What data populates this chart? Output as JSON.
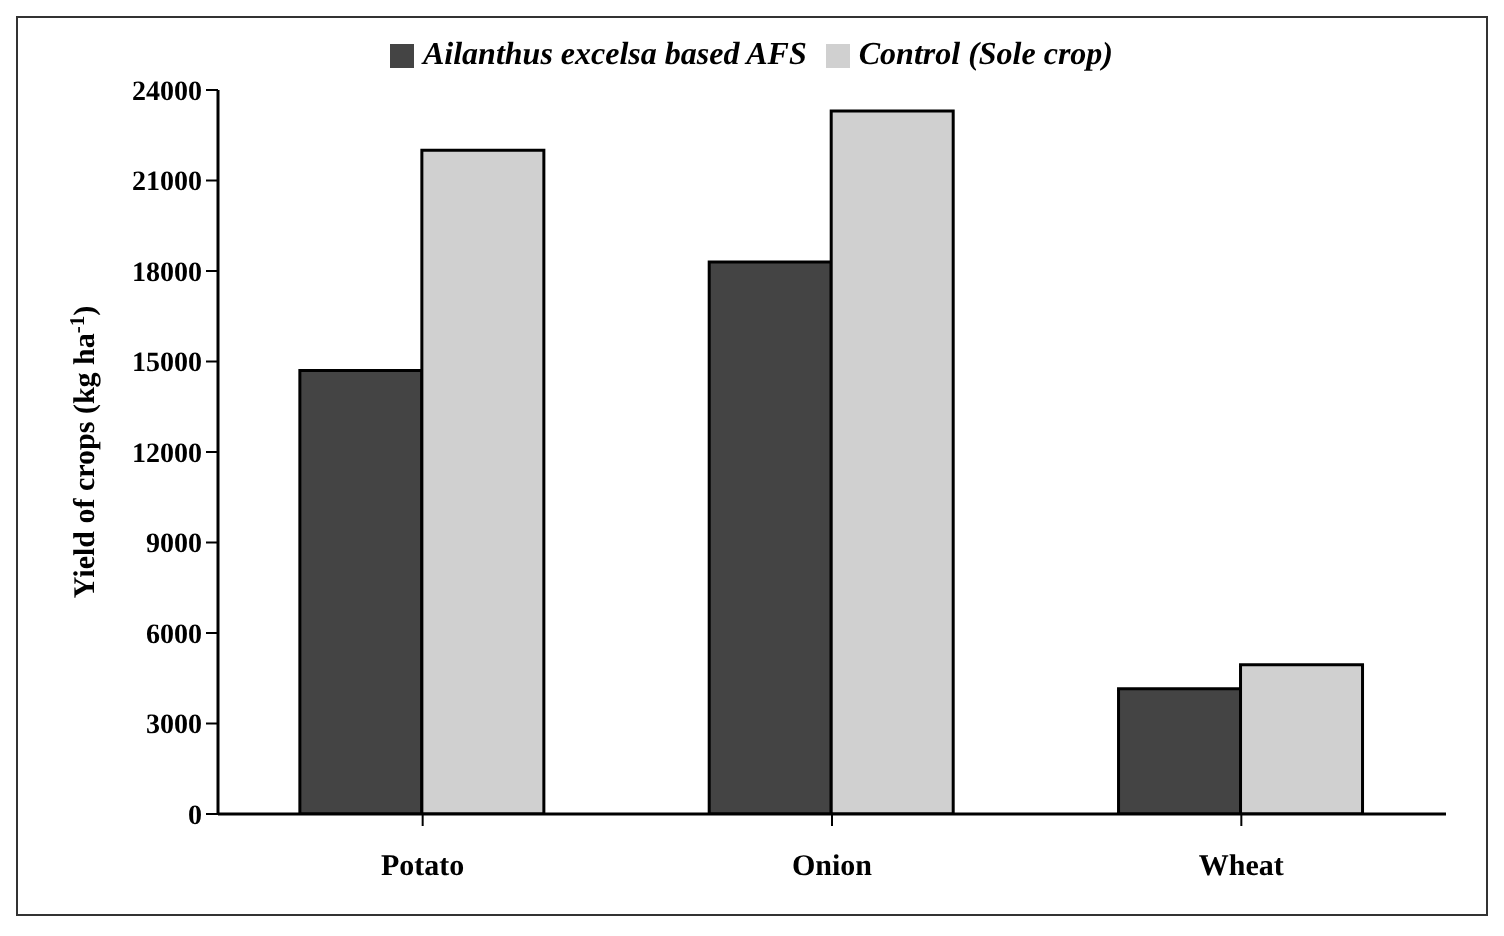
{
  "chart_data": {
    "type": "bar",
    "ylabel": "Yield of crops (kg ha$^{-1}$)",
    "categories": [
      "Potato",
      "Onion",
      "Wheat"
    ],
    "series": [
      {
        "name": "Ailanthus excelsa based AFS",
        "color": "#444444",
        "values": [
          14700,
          18300,
          4150
        ]
      },
      {
        "name": "Control (Sole crop)",
        "color": "#d0d0d0",
        "values": [
          22000,
          23300,
          4950
        ]
      }
    ],
    "ylim": [
      0,
      24000
    ],
    "yticks": [
      0,
      3000,
      6000,
      9000,
      12000,
      15000,
      18000,
      21000,
      24000
    ],
    "grid": false,
    "legend": "top"
  }
}
